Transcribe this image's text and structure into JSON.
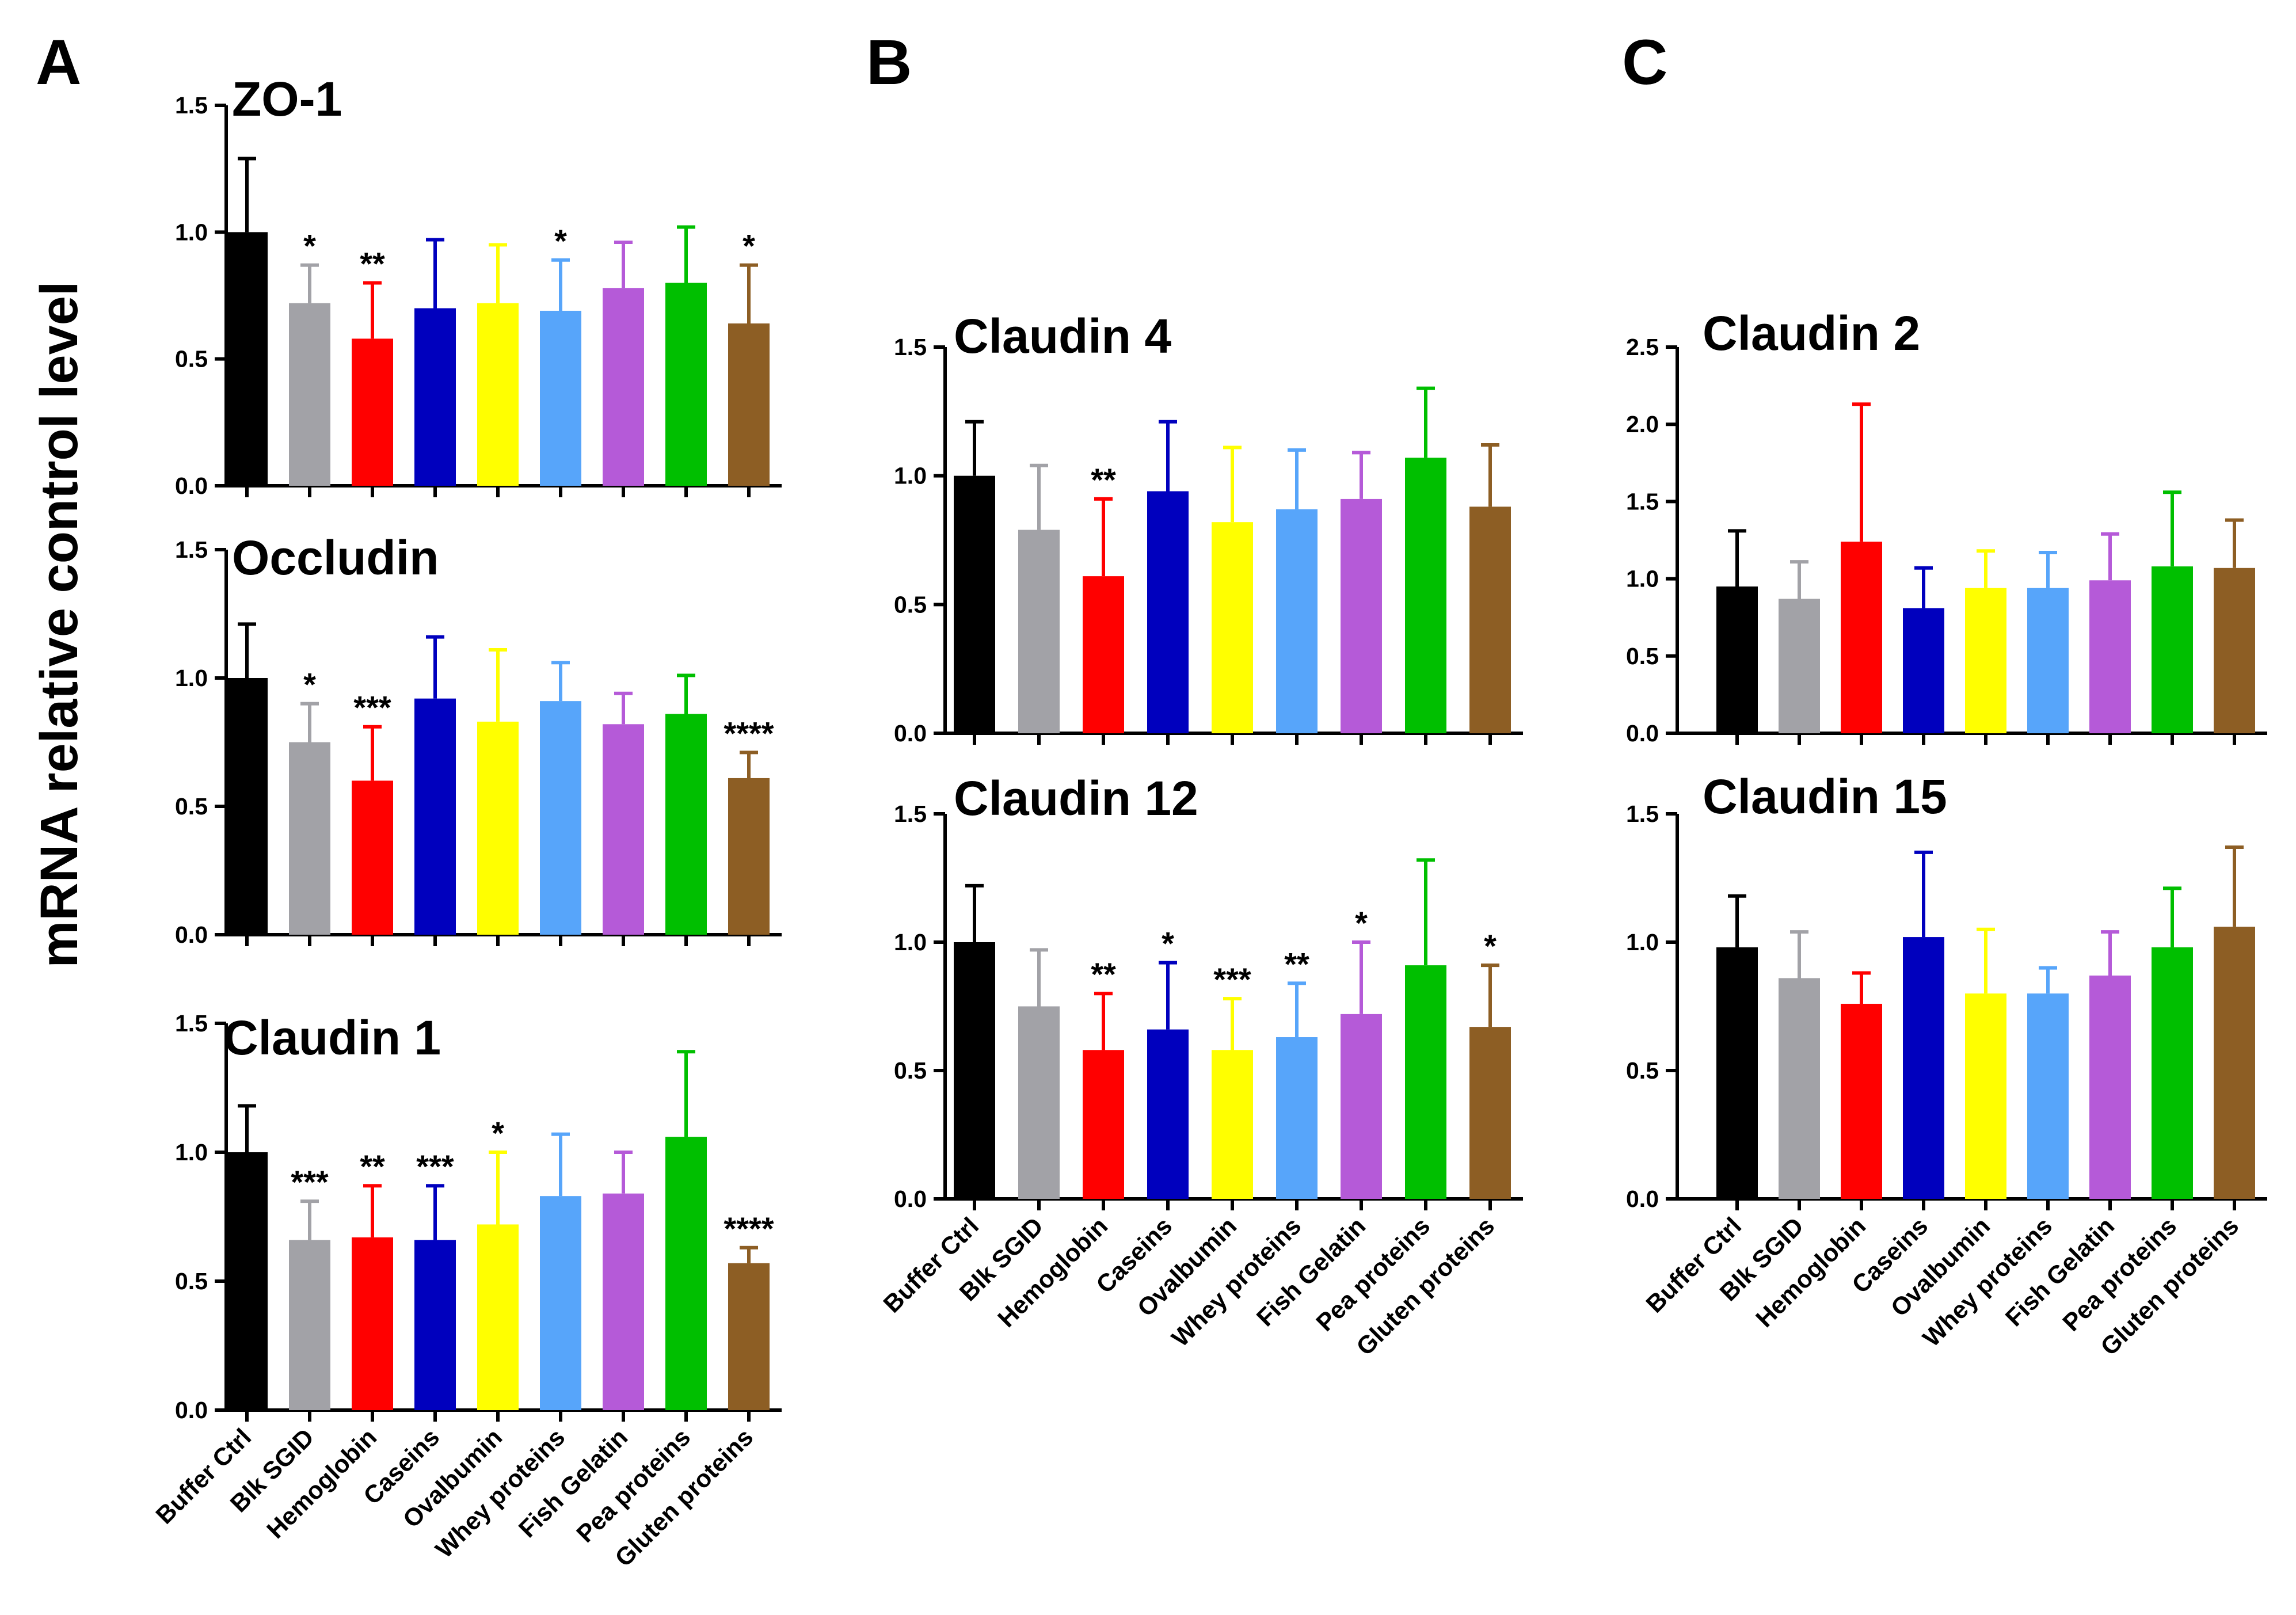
{
  "figure": {
    "panel_letters": [
      "A",
      "B",
      "C"
    ],
    "y_axis_label": "mRNA relative control level"
  },
  "categories": [
    "Buffer Ctrl",
    "Blk SGID",
    "Hemoglobin",
    "Caseins",
    "Ovalbumin",
    "Whey proteins",
    "Fish Gelatin",
    "Pea proteins",
    "Gluten proteins"
  ],
  "colors": [
    "#000000",
    "#a2a2a7",
    "#ff0000",
    "#0000be",
    "#ffff00",
    "#57a5fa",
    "#b55ad8",
    "#00bf00",
    "#8d5e24"
  ],
  "chart_data": [
    {
      "type": "bar",
      "panel": "A",
      "title": "ZO-1",
      "ylim": [
        0,
        1.5
      ],
      "yticks": [
        "0.0",
        "0.5",
        "1.0",
        "1.5"
      ],
      "values": [
        1.0,
        0.72,
        0.58,
        0.7,
        0.72,
        0.69,
        0.78,
        0.8,
        0.64
      ],
      "errors": [
        0.29,
        0.15,
        0.22,
        0.27,
        0.23,
        0.2,
        0.18,
        0.22,
        0.23
      ],
      "significance": [
        "",
        "*",
        "**",
        "",
        "",
        "*",
        "",
        "",
        "*"
      ]
    },
    {
      "type": "bar",
      "panel": "A",
      "title": "Occludin",
      "ylim": [
        0,
        1.5
      ],
      "yticks": [
        "0.0",
        "0.5",
        "1.0",
        "1.5"
      ],
      "values": [
        1.0,
        0.75,
        0.6,
        0.92,
        0.83,
        0.91,
        0.82,
        0.86,
        0.61
      ],
      "errors": [
        0.21,
        0.15,
        0.21,
        0.24,
        0.28,
        0.15,
        0.12,
        0.15,
        0.1
      ],
      "significance": [
        "",
        "*",
        "***",
        "",
        "",
        "",
        "",
        "",
        "****"
      ]
    },
    {
      "type": "bar",
      "panel": "A",
      "title": "Claudin 1",
      "ylim": [
        0,
        1.5
      ],
      "yticks": [
        "0.0",
        "0.5",
        "1.0",
        "1.5"
      ],
      "values": [
        1.0,
        0.66,
        0.67,
        0.66,
        0.72,
        0.83,
        0.84,
        1.06,
        0.57
      ],
      "errors": [
        0.18,
        0.15,
        0.2,
        0.21,
        0.28,
        0.24,
        0.16,
        0.33,
        0.06
      ],
      "significance": [
        "",
        "***",
        "**",
        "***",
        "*",
        "",
        "",
        "",
        "****"
      ]
    },
    {
      "type": "bar",
      "panel": "B",
      "title": "Claudin 4",
      "ylim": [
        0,
        1.5
      ],
      "yticks": [
        "0.0",
        "0.5",
        "1.0",
        "1.5"
      ],
      "values": [
        1.0,
        0.79,
        0.61,
        0.94,
        0.82,
        0.87,
        0.91,
        1.07,
        0.88
      ],
      "errors": [
        0.21,
        0.25,
        0.3,
        0.27,
        0.29,
        0.23,
        0.18,
        0.27,
        0.24
      ],
      "significance": [
        "",
        "",
        "**",
        "",
        "",
        "",
        "",
        "",
        ""
      ]
    },
    {
      "type": "bar",
      "panel": "B",
      "title": "Claudin 12",
      "ylim": [
        0,
        1.5
      ],
      "yticks": [
        "0.0",
        "0.5",
        "1.0",
        "1.5"
      ],
      "values": [
        1.0,
        0.75,
        0.58,
        0.66,
        0.58,
        0.63,
        0.72,
        0.91,
        0.67
      ],
      "errors": [
        0.22,
        0.22,
        0.22,
        0.26,
        0.2,
        0.21,
        0.28,
        0.41,
        0.24
      ],
      "significance": [
        "",
        "",
        "**",
        "*",
        "***",
        "**",
        "*",
        "",
        "*"
      ]
    },
    {
      "type": "bar",
      "panel": "C",
      "title": "Claudin 2",
      "ylim": [
        0,
        2.5
      ],
      "yticks": [
        "0.0",
        "0.5",
        "1.0",
        "1.5",
        "2.0",
        "2.5"
      ],
      "values": [
        0.95,
        0.87,
        1.24,
        0.81,
        0.94,
        0.94,
        0.99,
        1.08,
        1.07
      ],
      "errors": [
        0.36,
        0.24,
        0.89,
        0.26,
        0.24,
        0.23,
        0.3,
        0.48,
        0.31
      ],
      "significance": [
        "",
        "",
        "",
        "",
        "",
        "",
        "",
        "",
        ""
      ]
    },
    {
      "type": "bar",
      "panel": "C",
      "title": "Claudin 15",
      "ylim": [
        0,
        1.5
      ],
      "yticks": [
        "0.0",
        "0.5",
        "1.0",
        "1.5"
      ],
      "values": [
        0.98,
        0.86,
        0.76,
        1.02,
        0.8,
        0.8,
        0.87,
        0.98,
        1.06
      ],
      "errors": [
        0.2,
        0.18,
        0.12,
        0.33,
        0.25,
        0.1,
        0.17,
        0.23,
        0.31
      ],
      "significance": [
        "",
        "",
        "",
        "",
        "",
        "",
        "",
        "",
        ""
      ]
    }
  ]
}
